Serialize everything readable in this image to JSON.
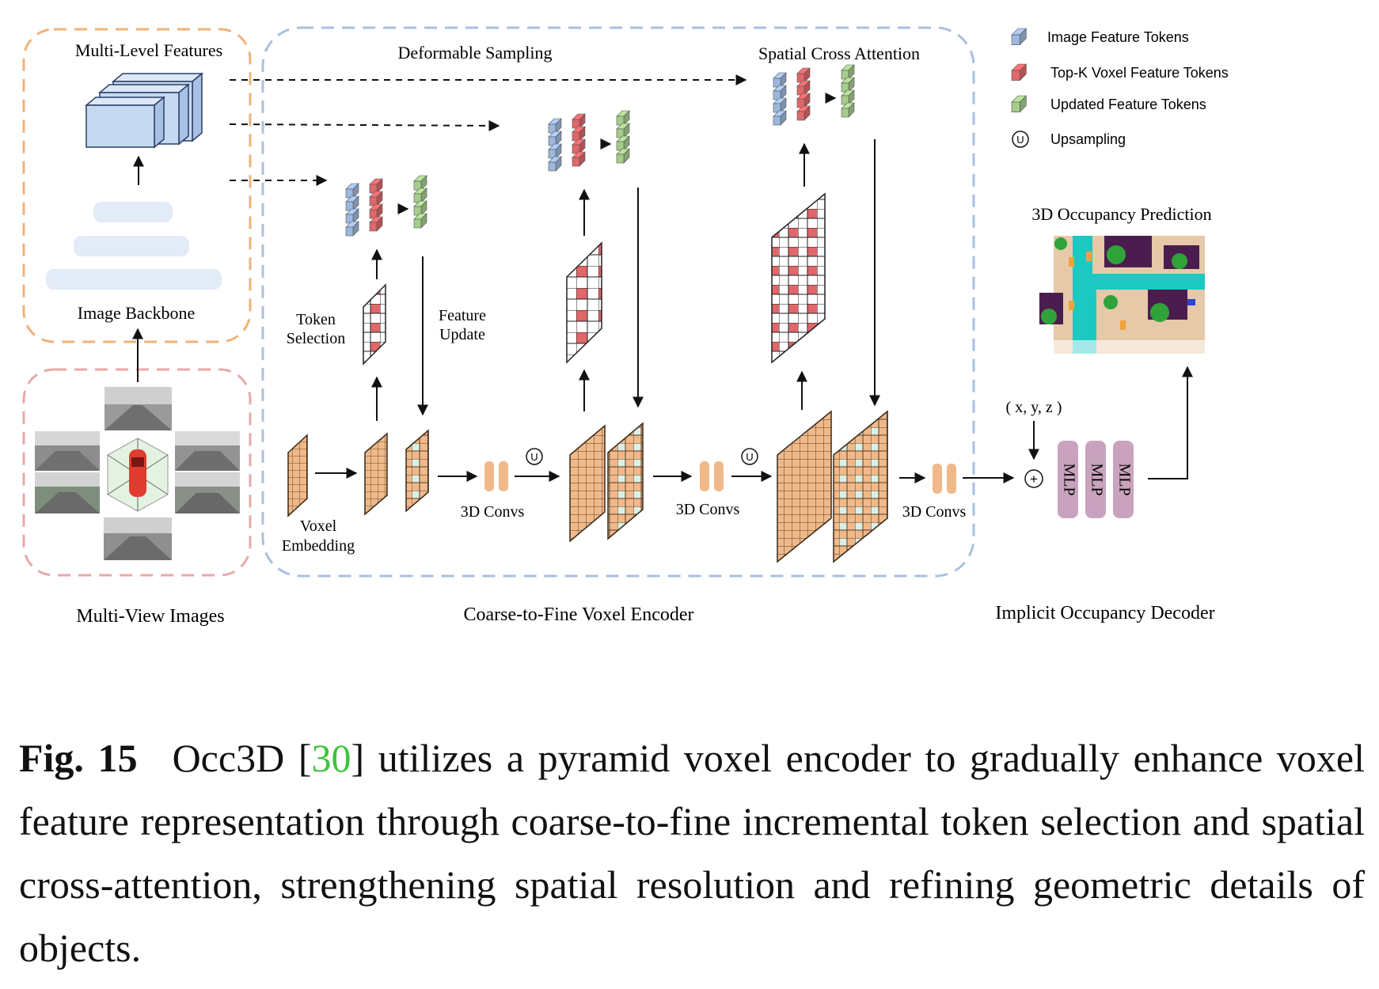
{
  "diagram": {
    "panels": {
      "image_backbone": {
        "top_label": "Multi-Level Features",
        "bottom_label": "Image Backbone"
      },
      "multi_view": {
        "label": "Multi-View Images"
      },
      "encoder": {
        "label": "Coarse-to-Fine Voxel Encoder",
        "deformable_sampling": "Deformable Sampling",
        "spatial_cross_attention": "Spatial Cross Attention",
        "token_selection_line1": "Token",
        "token_selection_line2": "Selection",
        "feature_update_line1": "Feature",
        "feature_update_line2": "Update",
        "voxel_embedding_line1": "Voxel",
        "voxel_embedding_line2": "Embedding",
        "conv_label_1": "3D Convs",
        "conv_label_2": "3D Convs",
        "conv_label_3": "3D Convs",
        "upsample_symbol": "U"
      },
      "decoder": {
        "label": "Implicit Occupancy Decoder",
        "prediction_title": "3D Occupancy Prediction",
        "coords": "( x, y, z )",
        "plus_symbol": "+",
        "mlp_labels": [
          "MLP",
          "MLP",
          "MLP"
        ]
      }
    },
    "legend": {
      "items": [
        {
          "label": "Image Feature Tokens",
          "color": "#9db8dd"
        },
        {
          "label": "Top-K Voxel Feature Tokens",
          "color": "#e0676a"
        },
        {
          "label": "Updated Feature Tokens",
          "color": "#a6cc8c"
        },
        {
          "label": "Upsampling",
          "symbol": "U"
        }
      ]
    },
    "colors": {
      "backbone_border": "#f0b27a",
      "multiview_border": "#e8a9a9",
      "encoder_border": "#a9c0e0",
      "voxel_orange": "#f0b98a",
      "voxel_light": "#dcefe4",
      "conv_orange": "#f0b98a",
      "mlp_purple": "#c9a3bd",
      "feature_blue": "#c5d9f0"
    }
  },
  "caption": {
    "label": "Fig. 15",
    "before_ref": "Occ3D [",
    "ref": "30",
    "after_ref": "] utilizes a pyramid voxel encoder to gradually enhance voxel feature representation through coarse-to-fine incremental token selection and spatial cross-attention, strengthening spatial resolution and refining geometric details of objects."
  }
}
